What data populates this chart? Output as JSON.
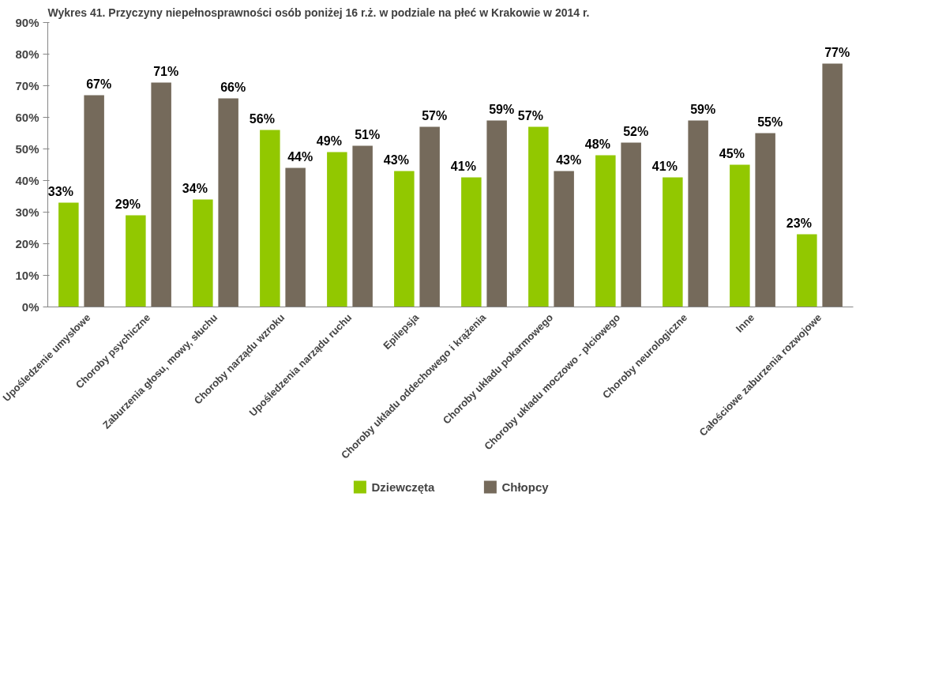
{
  "chart_data": {
    "type": "bar",
    "title": "Wykres 41. Przyczyny niepełnosprawności osób poniżej 16 r.ż. w podziale na płeć w Krakowie w 2014 r.",
    "categories": [
      "Upośledzenie umysłowe",
      "Choroby psychiczne",
      "Zaburzenia głosu, mowy, słuchu",
      "Choroby narządu wzroku",
      "Upośledzenia narządu ruchu",
      "Epilepsja",
      "Choroby układu oddechowego i krążenia",
      "Choroby układu pokarmowego",
      "Choroby układu moczowo - płciowego",
      "Choroby neurologiczne",
      "Inne",
      "Całościowe zaburzenia rozwojowe"
    ],
    "series": [
      {
        "name": "Dziewczęta",
        "color": "#92c800",
        "values": [
          33,
          29,
          34,
          56,
          49,
          43,
          41,
          57,
          48,
          41,
          45,
          23
        ],
        "value_labels": [
          "33%",
          "29%",
          "34%",
          "56%",
          "49%",
          "43%",
          "41%",
          "57%",
          "48%",
          "41%",
          "45%",
          "23%"
        ]
      },
      {
        "name": "Chłopcy",
        "color": "#756a5b",
        "values": [
          67,
          71,
          66,
          44,
          51,
          57,
          59,
          43,
          52,
          59,
          55,
          77
        ],
        "value_labels": [
          "67%",
          "71%",
          "66%",
          "44%",
          "51%",
          "57%",
          "59%",
          "43%",
          "52%",
          "59%",
          "55%",
          "77%"
        ]
      }
    ],
    "ylim": [
      0,
      90
    ],
    "yticks": [
      {
        "value": 0,
        "label": "0%"
      },
      {
        "value": 10,
        "label": "10%"
      },
      {
        "value": 20,
        "label": "20%"
      },
      {
        "value": 30,
        "label": "30%"
      },
      {
        "value": 40,
        "label": "40%"
      },
      {
        "value": 50,
        "label": "50%"
      },
      {
        "value": 60,
        "label": "60%"
      },
      {
        "value": 70,
        "label": "70%"
      },
      {
        "value": 80,
        "label": "80%"
      },
      {
        "value": 90,
        "label": "90%"
      }
    ],
    "grid": false,
    "legend": "bottom"
  }
}
